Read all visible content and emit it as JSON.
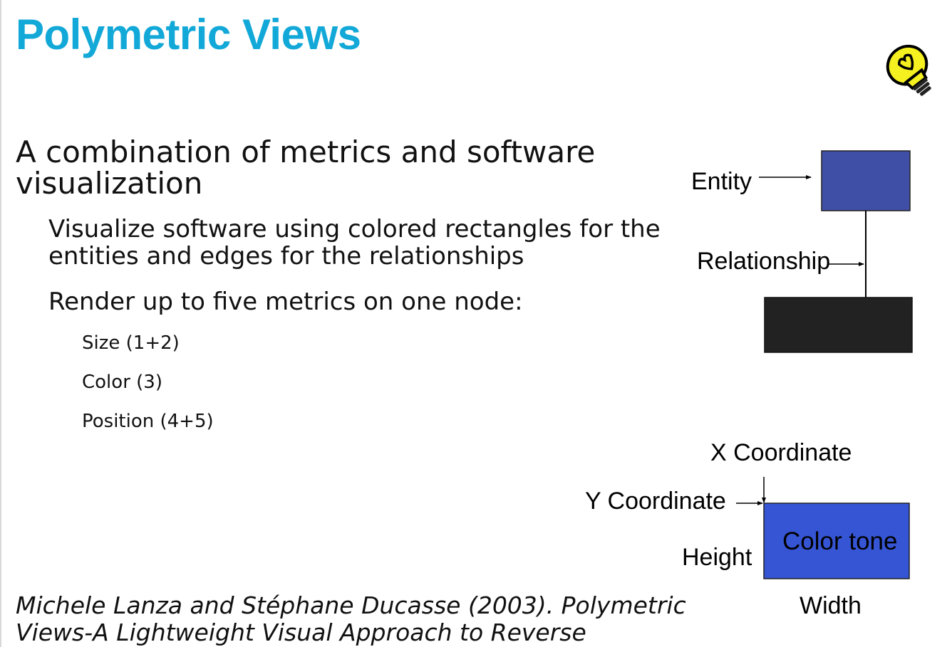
{
  "slide": {
    "title": "Polymetric Views",
    "main_point": "A combination of metrics and software visualization",
    "sub_points": [
      "Visualize software using colored rectangles for the entities and edges for the relationships",
      "Render up to five metrics on one node:"
    ],
    "metric_items": [
      "Size (1+2)",
      "Color (3)",
      "Position (4+5)"
    ],
    "citation": "Michele Lanza and Stéphane Ducasse (2003). Polymetric Views-A Lightweight Visual Approach to Reverse"
  },
  "diagram_top": {
    "entity_label": "Entity",
    "relationship_label": "Relationship",
    "entity_color": "#3f4fa6",
    "node2_color": "#222222"
  },
  "diagram_bottom": {
    "x_label": "X Coordinate",
    "y_label": "Y Coordinate",
    "height_label": "Height",
    "width_label": "Width",
    "node_label": "Color tone",
    "node_color": "#3555d4"
  },
  "colors": {
    "title": "#12a8d8",
    "bulb_fill": "#f5f020",
    "bulb_base": "#222222"
  },
  "icons": {
    "idea": "lightbulb-icon"
  }
}
